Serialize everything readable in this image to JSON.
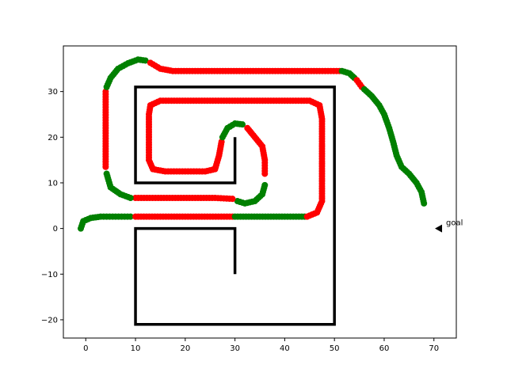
{
  "chart_data": {
    "type": "scatter",
    "title": "",
    "xlabel": "",
    "ylabel": "",
    "xlim": [
      -4.5,
      74.5
    ],
    "ylim": [
      -24,
      40
    ],
    "xticks": [
      0,
      10,
      20,
      30,
      40,
      50,
      60,
      70
    ],
    "yticks": [
      -20,
      -10,
      0,
      10,
      20,
      30
    ],
    "grid": false,
    "legend": "none",
    "colors": {
      "safe": "#008000",
      "collision": "#ff0000",
      "walls": "#000000",
      "axes": "#000000"
    },
    "walls": [
      [
        [
          30,
          20
        ],
        [
          30,
          10
        ],
        [
          10,
          10
        ],
        [
          10,
          31
        ],
        [
          50,
          31
        ],
        [
          50,
          -21
        ],
        [
          10,
          -21
        ],
        [
          10,
          0
        ],
        [
          30,
          0
        ],
        [
          30,
          -10
        ]
      ]
    ],
    "goal": {
      "x": 71,
      "y": 0,
      "label": "goal",
      "marker": "left-triangle"
    },
    "path_segments": [
      {
        "status": "safe",
        "points": [
          [
            -1,
            0
          ],
          [
            -0.5,
            1.6
          ],
          [
            1,
            2.3
          ],
          [
            3,
            2.6
          ],
          [
            6,
            2.6
          ],
          [
            9,
            2.6
          ]
        ]
      },
      {
        "status": "collision",
        "points": [
          [
            10,
            2.6
          ],
          [
            15,
            2.6
          ],
          [
            20,
            2.6
          ],
          [
            25,
            2.6
          ],
          [
            29.5,
            2.6
          ]
        ]
      },
      {
        "status": "safe",
        "points": [
          [
            30,
            2.6
          ],
          [
            35,
            2.6
          ],
          [
            40,
            2.6
          ],
          [
            44,
            2.6
          ]
        ]
      },
      {
        "status": "collision",
        "points": [
          [
            44.5,
            2.6
          ],
          [
            46.5,
            3.5
          ],
          [
            47.5,
            6
          ],
          [
            47.5,
            12
          ],
          [
            47.5,
            18
          ],
          [
            47.5,
            24
          ],
          [
            47,
            27
          ],
          [
            45,
            28
          ],
          [
            40,
            28
          ],
          [
            35,
            28
          ],
          [
            30,
            28
          ],
          [
            25,
            28
          ],
          [
            20,
            28
          ],
          [
            15,
            28
          ],
          [
            13,
            27
          ],
          [
            12.7,
            25
          ],
          [
            12.7,
            20
          ],
          [
            12.7,
            15
          ],
          [
            13.5,
            13
          ],
          [
            16,
            12.5
          ],
          [
            20,
            12.5
          ],
          [
            24,
            12.5
          ],
          [
            26,
            13
          ],
          [
            26.8,
            16
          ],
          [
            27.3,
            19
          ]
        ]
      },
      {
        "status": "safe",
        "points": [
          [
            27.5,
            20
          ],
          [
            28.5,
            22
          ],
          [
            30,
            23
          ],
          [
            31.5,
            22.8
          ]
        ]
      },
      {
        "status": "collision",
        "points": [
          [
            32.5,
            22
          ],
          [
            34,
            20
          ],
          [
            35.5,
            18
          ],
          [
            36,
            15
          ],
          [
            36,
            12
          ]
        ]
      },
      {
        "status": "safe",
        "points": [
          [
            36,
            9.5
          ],
          [
            35.5,
            7.5
          ],
          [
            34,
            6
          ],
          [
            32,
            5.5
          ],
          [
            30.5,
            6
          ]
        ]
      },
      {
        "status": "collision",
        "points": [
          [
            29.5,
            6.5
          ],
          [
            26,
            6.7
          ],
          [
            22,
            6.7
          ],
          [
            18,
            6.7
          ],
          [
            14,
            6.7
          ],
          [
            10,
            6.7
          ]
        ]
      },
      {
        "status": "safe",
        "points": [
          [
            9,
            6.7
          ],
          [
            7,
            7.5
          ],
          [
            5,
            9
          ],
          [
            4.2,
            12
          ]
        ]
      },
      {
        "status": "collision",
        "points": [
          [
            4,
            13.5
          ],
          [
            4,
            18
          ],
          [
            4,
            22
          ],
          [
            4,
            26
          ],
          [
            4,
            30
          ]
        ]
      },
      {
        "status": "safe",
        "points": [
          [
            4.2,
            31
          ],
          [
            5,
            33
          ],
          [
            6.5,
            35
          ],
          [
            8.5,
            36.2
          ],
          [
            10.5,
            37
          ],
          [
            12,
            36.8
          ]
        ]
      },
      {
        "status": "collision",
        "points": [
          [
            13,
            36.3
          ],
          [
            15,
            35
          ],
          [
            17.5,
            34.5
          ],
          [
            22,
            34.5
          ],
          [
            27,
            34.5
          ],
          [
            32,
            34.5
          ],
          [
            37,
            34.5
          ],
          [
            42,
            34.5
          ],
          [
            47,
            34.5
          ],
          [
            51,
            34.5
          ]
        ]
      },
      {
        "status": "safe",
        "points": [
          [
            51.5,
            34.5
          ],
          [
            53,
            34
          ],
          [
            54,
            33
          ]
        ]
      },
      {
        "status": "collision",
        "points": [
          [
            54.5,
            32.5
          ],
          [
            55.5,
            31
          ]
        ]
      },
      {
        "status": "safe",
        "points": [
          [
            56,
            30.5
          ],
          [
            57.5,
            29
          ],
          [
            59,
            27
          ],
          [
            60,
            25
          ],
          [
            61,
            22
          ],
          [
            61.8,
            19
          ],
          [
            62.5,
            16
          ],
          [
            63.5,
            13.5
          ],
          [
            65,
            12
          ],
          [
            66.5,
            10
          ],
          [
            67.5,
            8
          ],
          [
            68,
            5.5
          ]
        ]
      }
    ]
  }
}
